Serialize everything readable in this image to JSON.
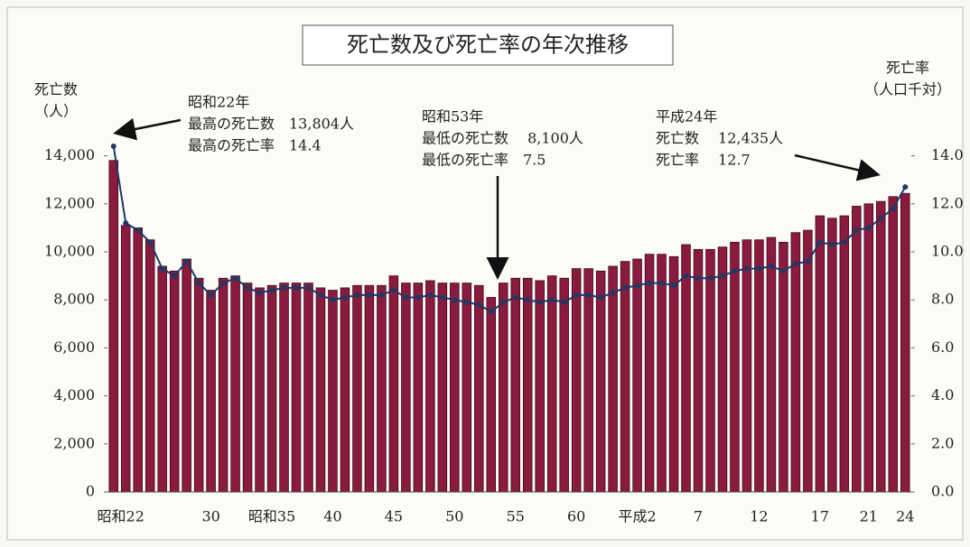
{
  "chart_data": {
    "type": "bar",
    "title": "死亡数及び死亡率の年次推移",
    "y_label": [
      "死亡数",
      "（人）"
    ],
    "y2_label": [
      "死亡率",
      "（人口千対）"
    ],
    "categories": [
      "昭和22",
      null,
      null,
      null,
      null,
      null,
      null,
      null,
      "30",
      null,
      null,
      null,
      null,
      "昭和35",
      null,
      null,
      null,
      null,
      "40",
      null,
      null,
      null,
      null,
      "45",
      null,
      null,
      null,
      null,
      "50",
      null,
      null,
      null,
      null,
      "55",
      null,
      null,
      null,
      null,
      "60",
      null,
      null,
      null,
      null,
      "平成2",
      null,
      null,
      null,
      null,
      "7",
      null,
      null,
      null,
      null,
      "12",
      null,
      null,
      null,
      null,
      "17",
      null,
      null,
      null,
      "21",
      null,
      null,
      "24"
    ],
    "series": [
      {
        "name": "死亡数",
        "type": "bar",
        "color": "#8b1a3f",
        "values": [
          13804,
          11100,
          11000,
          10500,
          9400,
          9200,
          9700,
          8900,
          8400,
          8900,
          9000,
          8700,
          8500,
          8600,
          8700,
          8700,
          8700,
          8500,
          8400,
          8500,
          8600,
          8600,
          8600,
          9000,
          8700,
          8700,
          8800,
          8700,
          8700,
          8700,
          8600,
          8100,
          8700,
          8900,
          8900,
          8800,
          9000,
          8900,
          9300,
          9300,
          9200,
          9400,
          9600,
          9700,
          9900,
          9900,
          9800,
          10300,
          10100,
          10100,
          10200,
          10400,
          10500,
          10500,
          10600,
          10400,
          10800,
          10900,
          11500,
          11400,
          11500,
          11900,
          12000,
          12100,
          12300,
          12435
        ]
      },
      {
        "name": "死亡率",
        "type": "line",
        "axis": "y2",
        "color": "#1f3864",
        "values": [
          14.4,
          11.2,
          10.9,
          10.4,
          9.3,
          9.0,
          9.6,
          8.7,
          8.2,
          8.7,
          8.9,
          8.5,
          8.3,
          8.4,
          8.5,
          8.5,
          8.5,
          8.2,
          8.0,
          8.1,
          8.2,
          8.2,
          8.2,
          8.4,
          8.1,
          8.1,
          8.2,
          8.1,
          8.0,
          7.9,
          7.8,
          7.5,
          7.9,
          8.1,
          8.0,
          7.9,
          8.0,
          7.9,
          8.2,
          8.2,
          8.1,
          8.3,
          8.5,
          8.6,
          8.7,
          8.7,
          8.6,
          9.0,
          8.9,
          8.9,
          9.0,
          9.2,
          9.3,
          9.3,
          9.4,
          9.2,
          9.5,
          9.6,
          10.4,
          10.3,
          10.4,
          10.9,
          11.0,
          11.4,
          11.8,
          12.7
        ]
      }
    ],
    "ylim": [
      0,
      15000
    ],
    "yticks": [
      0,
      {
        "value": 2000,
        "label": "2,000"
      },
      {
        "value": 4000,
        "label": "4,000"
      },
      {
        "value": 6000,
        "label": "6,000"
      },
      {
        "value": 8000,
        "label": "8,000"
      },
      {
        "value": 10000,
        "label": "10,000"
      },
      {
        "value": 12000,
        "label": "12,000"
      },
      {
        "value": 14000,
        "label": "14,000"
      }
    ],
    "y2lim": [
      0,
      15
    ],
    "y2ticks": [
      {
        "value": 0,
        "label": "0.0"
      },
      {
        "value": 2,
        "label": "2.0"
      },
      {
        "value": 4,
        "label": "4.0"
      },
      {
        "value": 6,
        "label": "6.0"
      },
      {
        "value": 8,
        "label": "8.0"
      },
      {
        "value": 10,
        "label": "10.0"
      },
      {
        "value": 12,
        "label": "12.0"
      },
      {
        "value": 14,
        "label": "14.0"
      }
    ],
    "annotations": [
      [
        "昭和22年",
        "最高の死亡数　13,804人",
        "最高の死亡率　14.4"
      ],
      [
        "昭和53年",
        "最低の死亡数　 8,100人",
        "最低の死亡率　7.5"
      ],
      [
        "平成24年",
        "死亡数　 12,435人",
        "死亡率　 12.7"
      ]
    ]
  }
}
